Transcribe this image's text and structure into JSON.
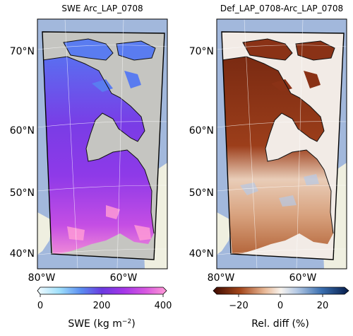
{
  "panels": [
    {
      "title": "SWE Arc_LAP_0708",
      "lat_labels": [
        "70°N",
        "60°N",
        "50°N",
        "40°N"
      ],
      "lon_labels": [
        "80°W",
        "60°W"
      ],
      "colorbar": {
        "ticks": [
          "0",
          "200",
          "400"
        ],
        "label_main": "SWE (kg m",
        "label_exp": "−2",
        "label_end": ")",
        "colormap": [
          "#f2fbff",
          "#9fe0fb",
          "#5a8cf0",
          "#6a3ae0",
          "#a536e8",
          "#d858e0",
          "#ff9ad6"
        ]
      }
    },
    {
      "title": "Def_LAP_0708-Arc_LAP_0708",
      "lat_labels": [
        "70°N",
        "60°N",
        "50°N",
        "40°N"
      ],
      "lon_labels": [
        "80°W",
        "60°W"
      ],
      "colorbar": {
        "ticks": [
          "−20",
          "0",
          "20"
        ],
        "label": "Rel. diff (%)",
        "colormap": [
          "#3d0a00",
          "#a4471c",
          "#e8b896",
          "#f7f3ee",
          "#b3c8e4",
          "#3a6fb0",
          "#061c4a"
        ]
      }
    }
  ],
  "colors": {
    "ocean": "#a2b8dc",
    "outside_land": "#efefe0",
    "masked_ocean_left": "#c5c5c1",
    "masked_land_right": "#f2ebe6"
  }
}
